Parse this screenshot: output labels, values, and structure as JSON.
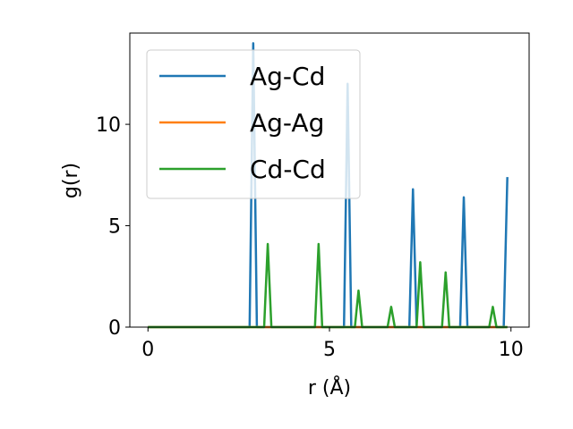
{
  "chart_data": {
    "type": "line",
    "xlabel": "r (Å)",
    "ylabel": "g(r)",
    "xlim": [
      -0.5,
      10.5
    ],
    "ylim": [
      0,
      14.5
    ],
    "xticks": [
      0,
      5,
      10
    ],
    "xtick_labels": [
      "0",
      "5",
      "10"
    ],
    "yticks": [
      0,
      5,
      10
    ],
    "ytick_labels": [
      "0",
      "5",
      "10"
    ],
    "grid": false,
    "legend_position": "top-left",
    "series": [
      {
        "name": "Ag-Cd",
        "color": "#1f77b4",
        "x": [
          0,
          2.8,
          2.9,
          3.0,
          5.4,
          5.5,
          5.6,
          7.2,
          7.3,
          7.4,
          8.6,
          8.7,
          8.8,
          9.8,
          9.9
        ],
        "y": [
          0,
          0,
          14.0,
          0,
          0,
          12.0,
          0,
          0,
          6.8,
          0,
          0,
          6.4,
          0,
          0,
          7.4
        ]
      },
      {
        "name": "Ag-Ag",
        "color": "#ff7f0e",
        "x": [
          0,
          9.9
        ],
        "y": [
          0,
          0
        ]
      },
      {
        "name": "Cd-Cd",
        "color": "#2ca02c",
        "x": [
          0,
          3.2,
          3.3,
          3.4,
          4.6,
          4.7,
          4.8,
          5.7,
          5.8,
          5.9,
          6.6,
          6.7,
          6.8,
          7.4,
          7.5,
          7.6,
          8.1,
          8.2,
          8.3,
          9.4,
          9.5,
          9.6,
          9.9
        ],
        "y": [
          0,
          0,
          4.1,
          0,
          0,
          4.1,
          0,
          0,
          1.8,
          0,
          0,
          1.0,
          0,
          0,
          3.2,
          0,
          0,
          2.7,
          0,
          0,
          1.0,
          0,
          0
        ]
      }
    ]
  }
}
